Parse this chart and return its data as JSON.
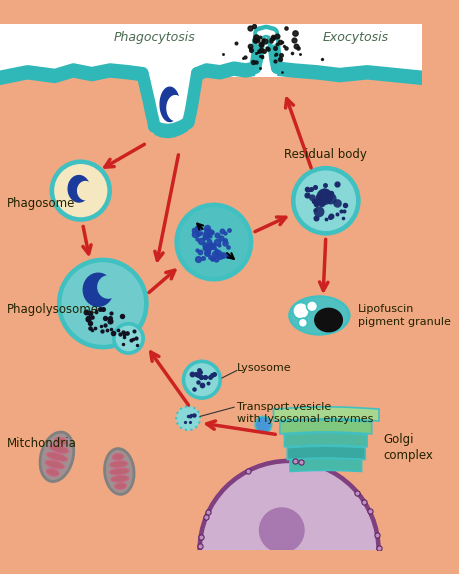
{
  "bg_color": "#F0A882",
  "cell_membrane_color": "#30B8B8",
  "labels": {
    "phagocytosis": "Phagocytosis",
    "exocytosis": "Exocytosis",
    "phagosome": "Phagosome",
    "phagolysosome": "Phagolysosome",
    "residual_body": "Residual body",
    "lipofuscin": "Lipofuscin\npigment granule",
    "lysosome": "Lysosome",
    "transport_vesicle": "Transport vesicle\nwith lysosomal enzymes",
    "mitochondria": "Mitchondria",
    "golgi": "Golgi\ncomplex"
  },
  "colors": {
    "teal_membrane": "#30B8B8",
    "teal_body": "#40C0C0",
    "teal_light": "#70CCCC",
    "teal_fill": "#88D8D8",
    "teal_inner": "#50C0C0",
    "blue_dark": "#1A3A9C",
    "blue_med": "#2050B0",
    "cream": "#F5E8C0",
    "white": "#FFFFFF",
    "black": "#111111",
    "red_arrow": "#CC2222",
    "mito_outer": "#808080",
    "mito_fill": "#A09090",
    "mito_inner": "#C06070",
    "mito_line": "#CC6688",
    "nucleus_outer": "#804080",
    "nucleus_fill": "#D0B0D0",
    "nucleus_inner": "#9060A0",
    "golgi_1": "#A0D090",
    "golgi_2": "#70B880",
    "golgi_3": "#40A890",
    "golgi_4": "#309090",
    "golgi_5": "#50B0A0",
    "golgi_teal": "#40B0A8",
    "dots_dark": "#1A2A6C",
    "dots_blue": "#2244AA",
    "lip_black": "#101010",
    "lip_teal": "#208888"
  }
}
